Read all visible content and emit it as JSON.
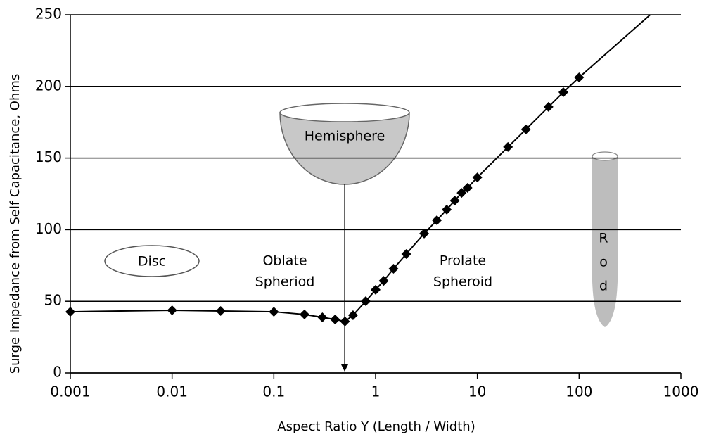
{
  "chart_data": {
    "type": "line",
    "xlabel": "Aspect Ratio Y (Length / Width)",
    "ylabel": "Surge Impedance from Self Capacitance, Ohms",
    "xscale": "log",
    "xlim": [
      0.001,
      1000
    ],
    "xticks": [
      0.001,
      0.01,
      0.1,
      1,
      10,
      100,
      1000
    ],
    "ylim": [
      0,
      250
    ],
    "yticks": [
      0,
      50,
      100,
      150,
      200,
      250
    ],
    "grid": true,
    "series": [
      {
        "color": "#000000",
        "marker": true,
        "x": [
          0.001,
          0.01,
          0.03,
          0.1,
          0.2,
          0.3,
          0.4,
          0.5,
          0.6,
          0.8,
          1,
          1.2,
          1.5,
          2,
          3,
          4,
          5,
          6,
          7,
          8,
          10,
          20,
          30,
          50,
          70,
          100
        ],
        "values": [
          42.7,
          43.7,
          43.2,
          42.7,
          40.8,
          38.8,
          37.3,
          35.9,
          40.3,
          50.1,
          58,
          64.3,
          72.7,
          83,
          97.3,
          106.6,
          114,
          120.3,
          125.7,
          129.2,
          136.5,
          157.7,
          170,
          185.7,
          196,
          206.3
        ]
      },
      {
        "color": "#000000",
        "marker": false,
        "x": [
          100,
          500
        ],
        "values": [
          206.3,
          250
        ]
      }
    ],
    "annotations": [
      {
        "lines": [
          "Disc"
        ]
      },
      {
        "lines": [
          "Oblate",
          "Spheriod"
        ]
      },
      {
        "lines": [
          "Hemisphere"
        ]
      },
      {
        "lines": [
          "Prolate",
          "Spheroid"
        ]
      },
      {
        "lines": [
          "R",
          "o",
          "d"
        ]
      }
    ]
  }
}
